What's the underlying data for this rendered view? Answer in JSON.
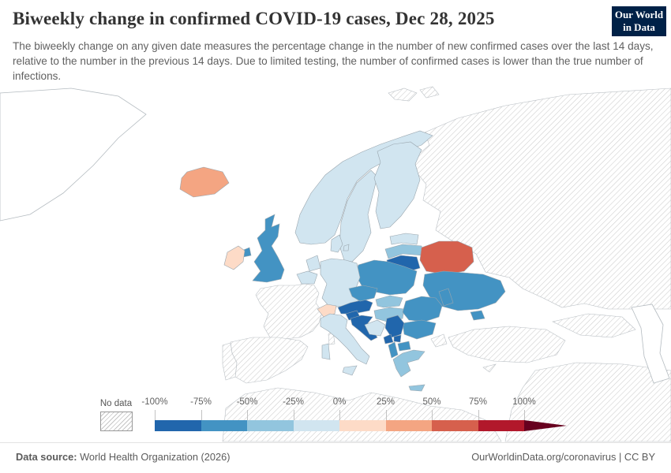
{
  "header": {
    "title": "Biweekly change in confirmed COVID-19 cases, Dec 28, 2025",
    "subtitle": "The biweekly change on any given date measures the percentage change in the number of new confirmed cases over the last 14 days, relative to the number in the previous 14 days. Due to limited testing, the number of confirmed cases is lower than the true number of infections.",
    "logo": {
      "line1": "Our World",
      "line2": "in Data"
    }
  },
  "legend": {
    "no_data_label": "No data",
    "ticks": [
      "-100%",
      "-75%",
      "-50%",
      "-25%",
      "0%",
      "25%",
      "50%",
      "75%",
      "100%"
    ],
    "segment_colors": [
      "#2166ac",
      "#4393c3",
      "#92c5de",
      "#d1e5f0",
      "#fddbc7",
      "#f4a582",
      "#d6604d",
      "#b2182b"
    ],
    "arrow_color": "#67001f"
  },
  "footer": {
    "source_label": "Data source:",
    "source_text": " World Health Organization (2026)",
    "link_text": "OurWorldinData.org/coronavirus | CC BY"
  },
  "chart_data": {
    "type": "choropleth-map",
    "title": "Biweekly change in confirmed COVID-19 cases",
    "date": "Dec 28, 2025",
    "region_shown": "Europe",
    "unit": "%",
    "scale": {
      "min": -100,
      "max": 100,
      "bins": [
        {
          "range": "-100% to -75%",
          "color": "#2166ac"
        },
        {
          "range": "-75% to -50%",
          "color": "#4393c3"
        },
        {
          "range": "-50% to -25%",
          "color": "#92c5de"
        },
        {
          "range": "-25% to 0%",
          "color": "#d1e5f0"
        },
        {
          "range": "0% to 25%",
          "color": "#fddbc7"
        },
        {
          "range": "25% to 50%",
          "color": "#f4a582"
        },
        {
          "range": "50% to 75%",
          "color": "#d6604d"
        },
        {
          "range": "75% to 100%",
          "color": "#b2182b"
        },
        {
          "range": "> 100%",
          "color": "#67001f"
        }
      ]
    },
    "countries": [
      {
        "id": "iceland",
        "name": "Iceland",
        "color": "#f4a582",
        "bucket": "25% to 50%"
      },
      {
        "id": "norway",
        "name": "Norway",
        "color": "#d1e5f0",
        "bucket": "-25% to 0%"
      },
      {
        "id": "sweden",
        "name": "Sweden",
        "color": "#d1e5f0",
        "bucket": "-25% to 0%"
      },
      {
        "id": "finland",
        "name": "Finland",
        "color": "#d1e5f0",
        "bucket": "-25% to 0%"
      },
      {
        "id": "denmark",
        "name": "Denmark",
        "color": "#d1e5f0",
        "bucket": "-25% to 0%"
      },
      {
        "id": "estonia",
        "name": "Estonia",
        "color": "#d1e5f0",
        "bucket": "-25% to 0%"
      },
      {
        "id": "latvia",
        "name": "Latvia",
        "color": "#92c5de",
        "bucket": "-50% to -25%"
      },
      {
        "id": "lithuania",
        "name": "Lithuania",
        "color": "#2166ac",
        "bucket": "-100% to -75%"
      },
      {
        "id": "belarus",
        "name": "Belarus",
        "color": "#d6604d",
        "bucket": "50% to 75%"
      },
      {
        "id": "poland",
        "name": "Poland",
        "color": "#4393c3",
        "bucket": "-75% to -50%"
      },
      {
        "id": "germany",
        "name": "Germany",
        "color": "#d1e5f0",
        "bucket": "-25% to 0%"
      },
      {
        "id": "netherlands",
        "name": "Netherlands",
        "color": "#d1e5f0",
        "bucket": "-25% to 0%"
      },
      {
        "id": "belgium",
        "name": "Belgium",
        "color": "#d1e5f0",
        "bucket": "-25% to 0%"
      },
      {
        "id": "united-kingdom",
        "name": "United Kingdom",
        "color": "#4393c3",
        "bucket": "-75% to -50%"
      },
      {
        "id": "ireland",
        "name": "Ireland",
        "color": "#fddbc7",
        "bucket": "0% to 25%"
      },
      {
        "id": "switzerland",
        "name": "Switzerland",
        "color": "#fddbc7",
        "bucket": "0% to 25%"
      },
      {
        "id": "austria",
        "name": "Austria",
        "color": "#2166ac",
        "bucket": "-100% to -75%"
      },
      {
        "id": "czechia",
        "name": "Czechia",
        "color": "#4393c3",
        "bucket": "-75% to -50%"
      },
      {
        "id": "slovakia",
        "name": "Slovakia",
        "color": "#92c5de",
        "bucket": "-50% to -25%"
      },
      {
        "id": "hungary",
        "name": "Hungary",
        "color": "#92c5de",
        "bucket": "-50% to -25%"
      },
      {
        "id": "italy",
        "name": "Italy",
        "color": "#d1e5f0",
        "bucket": "-25% to 0%"
      },
      {
        "id": "slovenia",
        "name": "Slovenia",
        "color": "#2166ac",
        "bucket": "-100% to -75%"
      },
      {
        "id": "croatia",
        "name": "Croatia",
        "color": "#2166ac",
        "bucket": "-100% to -75%"
      },
      {
        "id": "bosnia",
        "name": "Bosnia and Herzegovina",
        "color": "#d1e5f0",
        "bucket": "-25% to 0%"
      },
      {
        "id": "serbia",
        "name": "Serbia",
        "color": "#2166ac",
        "bucket": "-100% to -75%"
      },
      {
        "id": "montenegro",
        "name": "Montenegro",
        "color": "#2166ac",
        "bucket": "-100% to -75%"
      },
      {
        "id": "kosovo",
        "name": "Kosovo",
        "color": "#2166ac",
        "bucket": "-100% to -75%"
      },
      {
        "id": "north-macedonia",
        "name": "North Macedonia",
        "color": "#4393c3",
        "bucket": "-75% to -50%"
      },
      {
        "id": "albania",
        "name": "Albania",
        "color": "#4393c3",
        "bucket": "-75% to -50%"
      },
      {
        "id": "romania",
        "name": "Romania",
        "color": "#4393c3",
        "bucket": "-75% to -50%"
      },
      {
        "id": "moldova",
        "name": "Moldova",
        "color": "#4393c3",
        "bucket": "-75% to -50%"
      },
      {
        "id": "bulgaria",
        "name": "Bulgaria",
        "color": "#4393c3",
        "bucket": "-75% to -50%"
      },
      {
        "id": "ukraine",
        "name": "Ukraine",
        "color": "#4393c3",
        "bucket": "-75% to -50%"
      },
      {
        "id": "greece",
        "name": "Greece",
        "color": "#92c5de",
        "bucket": "-50% to -25%"
      }
    ],
    "no_data": [
      "France",
      "Spain",
      "Portugal",
      "Russia",
      "Turkey",
      "Cyprus",
      "Svalbard",
      "North Africa",
      "Middle East",
      "Caucasus"
    ]
  }
}
